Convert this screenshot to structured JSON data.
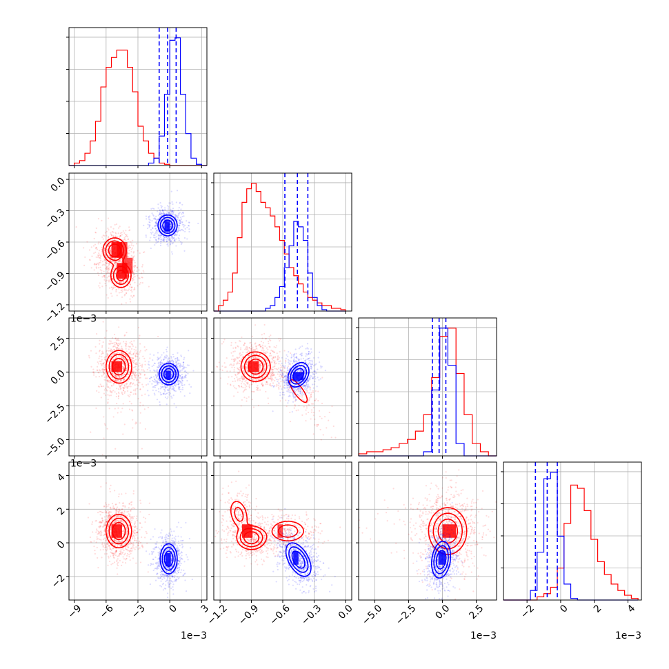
{
  "chart_data": {
    "type": "corner",
    "colors": {
      "red": "#ff0000",
      "blue": "#0000ff"
    },
    "grid": true,
    "params": [
      {
        "range": [
          -9.5,
          3.5
        ],
        "ticks": [
          -9,
          -6,
          -3,
          0,
          3
        ],
        "tick_labels": [
          "−9",
          "−6",
          "−3",
          "0",
          "3"
        ],
        "offset_text": "1e−3"
      },
      {
        "range": [
          -1.26,
          0.06
        ],
        "ticks": [
          -1.2,
          -0.9,
          -0.6,
          -0.3,
          0.0
        ],
        "tick_labels": [
          "−1.2",
          "−0.9",
          "−0.6",
          "−0.3",
          "0.0"
        ],
        "offset_text": "1e−3"
      },
      {
        "range": [
          -6.2,
          4.0
        ],
        "ticks": [
          -5.0,
          -2.5,
          0.0,
          2.5
        ],
        "tick_labels": [
          "−5.0",
          "−2.5",
          "0.0",
          "2.5"
        ],
        "offset_text": "1e−3"
      },
      {
        "range": [
          -3.4,
          4.8
        ],
        "ticks": [
          -2,
          0,
          2,
          4
        ],
        "tick_labels": [
          "−2",
          "0",
          "2",
          "4"
        ],
        "offset_text": "1e−3"
      }
    ],
    "marginals": [
      {
        "param": 0,
        "red": {
          "edges": [
            -9.5,
            -9,
            -8.5,
            -8,
            -7.5,
            -7,
            -6.5,
            -6,
            -5.5,
            -5,
            -4.5,
            -4,
            -3.5,
            -3,
            -2.5,
            -2,
            -1.5,
            -1,
            -0.5,
            0,
            0.5,
            1,
            1.5,
            2,
            2.5,
            3,
            3.5
          ],
          "counts": [
            0,
            1,
            2,
            5,
            10,
            18,
            32,
            40,
            44,
            47,
            47,
            40,
            30,
            16,
            10,
            5,
            3,
            1,
            0.5,
            0,
            0,
            0,
            0,
            0,
            0,
            0
          ]
        },
        "blue": {
          "edges": [
            -9.5,
            -9,
            -8.5,
            -8,
            -7.5,
            -7,
            -6.5,
            -6,
            -5.5,
            -5,
            -4.5,
            -4,
            -3.5,
            -3,
            -2.5,
            -2,
            -1.5,
            -1,
            -0.5,
            0,
            0.5,
            1,
            1.5,
            2,
            2.5,
            3,
            3.5
          ],
          "counts": [
            0,
            0,
            0,
            0,
            0,
            0,
            0,
            0,
            0,
            0,
            0,
            0,
            0,
            0,
            0,
            1,
            3,
            12,
            29,
            51,
            52,
            29,
            13,
            3,
            0.5,
            0,
            0
          ]
        },
        "quantiles": [
          -1.0,
          -0.2,
          0.6
        ]
      },
      {
        "param": 1,
        "red": {
          "edges": [
            -1.26,
            -1.215,
            -1.17,
            -1.125,
            -1.08,
            -1.035,
            -0.99,
            -0.945,
            -0.9,
            -0.855,
            -0.81,
            -0.765,
            -0.72,
            -0.675,
            -0.63,
            -0.585,
            -0.54,
            -0.495,
            -0.45,
            -0.405,
            -0.36,
            -0.315,
            -0.27,
            -0.225,
            -0.18,
            -0.135,
            -0.09,
            -0.045,
            0.0
          ],
          "counts": [
            0,
            2,
            4,
            7,
            14,
            27,
            40,
            45,
            47,
            44,
            40,
            38,
            35,
            31,
            26,
            21,
            16,
            13,
            10,
            7,
            5,
            4,
            3,
            2,
            2,
            1,
            1,
            0.5
          ]
        },
        "blue": {
          "edges": [
            -1.26,
            -1.215,
            -1.17,
            -1.125,
            -1.08,
            -1.035,
            -0.99,
            -0.945,
            -0.9,
            -0.855,
            -0.81,
            -0.765,
            -0.72,
            -0.675,
            -0.63,
            -0.585,
            -0.54,
            -0.495,
            -0.45,
            -0.405,
            -0.36,
            -0.315,
            -0.27,
            -0.225,
            -0.18,
            -0.135,
            -0.09,
            -0.045,
            0.0
          ],
          "counts": [
            0,
            0,
            0,
            0,
            0,
            0,
            0,
            0,
            0,
            0,
            0,
            1,
            2,
            5,
            9,
            16,
            24,
            33,
            31,
            26,
            14,
            5,
            2,
            0.5,
            0,
            0,
            0,
            0
          ]
        },
        "quantiles": [
          -0.58,
          -0.46,
          -0.36
        ]
      },
      {
        "param": 2,
        "red": {
          "edges": [
            -6.2,
            -5.6,
            -5.0,
            -4.4,
            -3.8,
            -3.2,
            -2.6,
            -2.0,
            -1.4,
            -0.8,
            -0.2,
            0.4,
            1.0,
            1.6,
            2.2,
            2.8,
            3.4,
            4.0
          ],
          "counts": [
            0.5,
            1,
            1,
            1.5,
            2,
            3,
            4,
            6,
            10,
            19,
            29,
            31,
            20,
            10,
            3,
            1,
            0
          ]
        },
        "blue": {
          "edges": [
            -6.2,
            -5.6,
            -5.0,
            -4.4,
            -3.8,
            -3.2,
            -2.6,
            -2.0,
            -1.4,
            -0.8,
            -0.2,
            0.4,
            1.0,
            1.6,
            2.2,
            2.8,
            3.4,
            4.0
          ],
          "counts": [
            0,
            0,
            0,
            0,
            0,
            0,
            0,
            0,
            1,
            16,
            31,
            22,
            3,
            0,
            0,
            0,
            0
          ]
        },
        "quantiles": [
          -0.75,
          -0.25,
          0.25
        ]
      },
      {
        "param": 3,
        "red": {
          "edges": [
            -3.4,
            -3.0,
            -2.6,
            -2.2,
            -1.8,
            -1.4,
            -1.0,
            -0.6,
            -0.2,
            0.2,
            0.6,
            1.0,
            1.4,
            1.8,
            2.2,
            2.6,
            3.0,
            3.4,
            3.8,
            4.2,
            4.6
          ],
          "counts": [
            0,
            0,
            0,
            0,
            0,
            1,
            2,
            4,
            10,
            24,
            36,
            35,
            28,
            19,
            12,
            8,
            5,
            3,
            1.5,
            0.5
          ]
        },
        "blue": {
          "edges": [
            -3.4,
            -3.0,
            -2.6,
            -2.2,
            -1.8,
            -1.4,
            -1.0,
            -0.6,
            -0.2,
            0.2,
            0.6,
            1.0,
            1.4,
            1.8,
            2.2,
            2.6,
            3.0,
            3.4,
            3.8,
            4.2,
            4.6
          ],
          "counts": [
            0,
            0,
            0,
            0,
            3,
            15,
            38,
            40,
            20,
            5,
            0.5,
            0,
            0,
            0,
            0,
            0,
            0,
            0,
            0,
            0
          ]
        },
        "quantiles": [
          -1.5,
          -0.8,
          -0.2
        ]
      }
    ],
    "joints": [
      {
        "x_param": 0,
        "y_param": 1,
        "red": {
          "modes": [
            {
              "mx": -5.2,
              "my": -0.68,
              "sx": 0.55,
              "sy": 0.06,
              "rho": 0.0,
              "w": 1.0
            },
            {
              "mx": -4.6,
              "my": -0.92,
              "sx": 0.5,
              "sy": 0.06,
              "rho": 0.0,
              "w": 0.85
            }
          ],
          "cells": [
            [
              -5.5,
              -0.75,
              1.0,
              0.15,
              0.86
            ],
            [
              -5.0,
              -0.95,
              1.0,
              0.15,
              0.86
            ],
            [
              -5.0,
              -0.75,
              1.0,
              0.15,
              0.7
            ],
            [
              -4.5,
              -0.9,
              1.0,
              0.15,
              0.7
            ]
          ]
        },
        "blue": {
          "modes": [
            {
              "mx": -0.2,
              "my": -0.44,
              "sx": 0.45,
              "sy": 0.05,
              "rho": 0.0,
              "w": 1.0
            }
          ],
          "cells": [
            [
              -0.5,
              -0.5,
              0.5,
              0.1,
              0.86
            ]
          ]
        }
      },
      {
        "x_param": 0,
        "y_param": 2,
        "red": {
          "modes": [
            {
              "mx": -4.8,
              "my": 0.4,
              "sx": 0.6,
              "sy": 0.6,
              "rho": 0.0,
              "w": 1.0
            },
            {
              "mx": -4.0,
              "my": -2.5,
              "sx": 0.8,
              "sy": 1.2,
              "rho": 0.2,
              "w": 0.08
            }
          ],
          "cells": [
            [
              -5.5,
              0.0,
              1.0,
              0.8,
              0.86
            ]
          ]
        },
        "blue": {
          "modes": [
            {
              "mx": -0.1,
              "my": -0.15,
              "sx": 0.45,
              "sy": 0.4,
              "rho": 0.0,
              "w": 1.0
            }
          ],
          "cells": [
            [
              -0.4,
              -0.5,
              0.5,
              0.6,
              0.86
            ]
          ]
        }
      },
      {
        "x_param": 1,
        "y_param": 2,
        "red": {
          "modes": [
            {
              "mx": -0.86,
              "my": 0.4,
              "sx": 0.07,
              "sy": 0.55,
              "rho": 0.0,
              "w": 1.0
            },
            {
              "mx": -0.45,
              "my": -1.4,
              "sx": 0.1,
              "sy": 1.0,
              "rho": -0.8,
              "w": 0.2
            }
          ],
          "cells": [
            [
              -0.93,
              0.0,
              0.1,
              0.8,
              0.86
            ]
          ]
        },
        "blue": {
          "modes": [
            {
              "mx": -0.45,
              "my": -0.2,
              "sx": 0.05,
              "sy": 0.45,
              "rho": 0.3,
              "w": 1.0
            }
          ],
          "cells": [
            [
              -0.5,
              -0.6,
              0.1,
              0.6,
              0.86
            ]
          ]
        }
      },
      {
        "x_param": 0,
        "y_param": 3,
        "red": {
          "modes": [
            {
              "mx": -4.8,
              "my": 0.7,
              "sx": 0.6,
              "sy": 0.5,
              "rho": 0.0,
              "w": 1.0
            }
          ],
          "cells": [
            [
              -5.5,
              0.3,
              1.0,
              0.8,
              0.86
            ]
          ]
        },
        "blue": {
          "modes": [
            {
              "mx": -0.1,
              "my": -0.95,
              "sx": 0.4,
              "sy": 0.45,
              "rho": 0.0,
              "w": 1.0
            }
          ],
          "cells": [
            [
              -0.4,
              -1.4,
              0.5,
              0.8,
              0.86
            ]
          ]
        }
      },
      {
        "x_param": 1,
        "y_param": 3,
        "red": {
          "modes": [
            {
              "mx": -0.9,
              "my": 0.3,
              "sx": 0.07,
              "sy": 0.35,
              "rho": 0.0,
              "w": 1.0
            },
            {
              "mx": -1.02,
              "my": 1.7,
              "sx": 0.05,
              "sy": 0.5,
              "rho": -0.3,
              "w": 0.45
            },
            {
              "mx": -0.55,
              "my": 0.7,
              "sx": 0.09,
              "sy": 0.35,
              "rho": 0.0,
              "w": 0.55
            }
          ],
          "cells": [
            [
              -0.99,
              0.3,
              0.1,
              0.8,
              0.86
            ],
            [
              -0.65,
              0.3,
              0.05,
              0.8,
              0.7
            ]
          ]
        },
        "blue": {
          "modes": [
            {
              "mx": -0.45,
              "my": -1.0,
              "sx": 0.06,
              "sy": 0.5,
              "rho": -0.5,
              "w": 1.0
            }
          ],
          "cells": [
            [
              -0.5,
              -1.3,
              0.05,
              0.8,
              0.86
            ]
          ]
        }
      },
      {
        "x_param": 2,
        "y_param": 3,
        "red": {
          "modes": [
            {
              "mx": 0.4,
              "my": 0.7,
              "sx": 0.7,
              "sy": 0.7,
              "rho": 0.0,
              "w": 1.0
            },
            {
              "mx": -3.5,
              "my": 1.0,
              "sx": 1.5,
              "sy": 0.8,
              "rho": 0.0,
              "w": 0.06
            }
          ],
          "cells": [
            [
              0.0,
              0.3,
              1.0,
              0.8,
              0.86
            ]
          ]
        },
        "blue": {
          "modes": [
            {
              "mx": -0.1,
              "my": -1.0,
              "sx": 0.35,
              "sy": 0.55,
              "rho": 0.2,
              "w": 1.0
            }
          ],
          "cells": [
            [
              -0.3,
              -1.3,
              0.5,
              0.8,
              0.86
            ]
          ]
        }
      }
    ]
  }
}
